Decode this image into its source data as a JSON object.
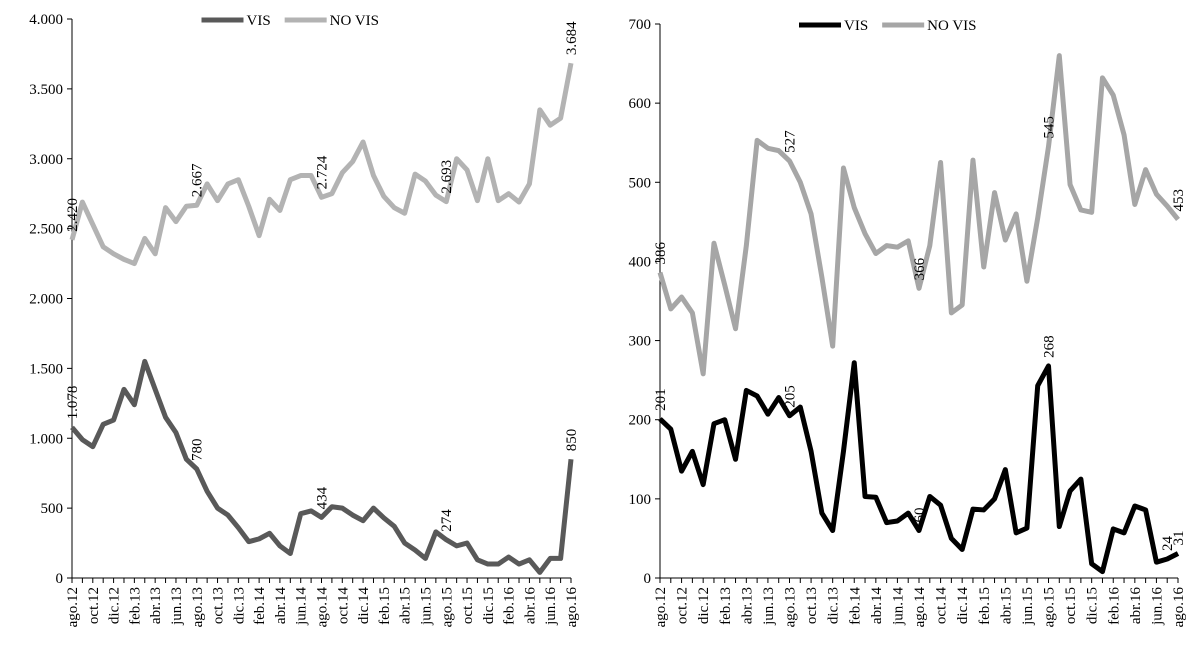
{
  "chart_data": [
    {
      "type": "line",
      "categories": [
        "ago.12",
        null,
        "oct.12",
        null,
        "dic.12",
        null,
        "feb.13",
        null,
        "abr.13",
        null,
        "jun.13",
        null,
        "ago.13",
        null,
        "oct.13",
        null,
        "dic.13",
        null,
        "feb.14",
        null,
        "abr.14",
        null,
        "jun.14",
        null,
        "ago.14",
        null,
        "oct.14",
        null,
        "dic.14",
        null,
        "feb.15",
        null,
        "abr.15",
        null,
        "jun.15",
        null,
        "ago.15",
        null,
        "oct.15",
        null,
        "dic.15",
        null,
        "feb.16",
        null,
        "abr.16",
        null,
        "jun.16",
        null,
        "ago.16"
      ],
      "ylim": [
        0,
        4000
      ],
      "yticks": [
        0,
        500,
        {
          "value": 1000,
          "label": "1.000"
        },
        {
          "value": 1500,
          "label": "1.500"
        },
        {
          "value": 2000,
          "label": "2.000"
        },
        {
          "value": 2500,
          "label": "2.500"
        },
        {
          "value": 3000,
          "label": "3.000"
        },
        {
          "value": 3500,
          "label": "3.500"
        },
        {
          "value": 4000,
          "label": "4.000"
        }
      ],
      "grid": false,
      "legend": "top",
      "series": [
        {
          "name": "VIS",
          "color": "#595959",
          "values": [
            1078,
            990,
            940,
            1100,
            1130,
            1350,
            1240,
            1550,
            1350,
            1150,
            1040,
            850,
            780,
            620,
            500,
            450,
            360,
            260,
            280,
            320,
            230,
            175,
            460,
            480,
            434,
            510,
            500,
            450,
            410,
            500,
            430,
            370,
            250,
            200,
            140,
            330,
            274,
            230,
            250,
            130,
            100,
            100,
            150,
            100,
            130,
            40,
            140,
            140,
            850
          ],
          "value_labels": [
            "1.078",
            null,
            null,
            null,
            null,
            null,
            null,
            null,
            null,
            null,
            null,
            null,
            "780",
            null,
            null,
            null,
            null,
            null,
            null,
            null,
            null,
            null,
            null,
            null,
            "434",
            null,
            null,
            null,
            null,
            null,
            null,
            null,
            null,
            null,
            null,
            null,
            "274",
            null,
            null,
            null,
            null,
            null,
            null,
            null,
            null,
            null,
            null,
            null,
            "850"
          ]
        },
        {
          "name": "NO VIS",
          "color": "#b3b3b3",
          "values": [
            2420,
            2690,
            2530,
            2370,
            2320,
            2280,
            2250,
            2430,
            2320,
            2650,
            2550,
            2660,
            2667,
            2820,
            2700,
            2820,
            2850,
            2660,
            2450,
            2710,
            2630,
            2850,
            2880,
            2880,
            2724,
            2750,
            2900,
            2980,
            3120,
            2880,
            2730,
            2650,
            2610,
            2890,
            2840,
            2740,
            2693,
            3000,
            2920,
            2700,
            3000,
            2700,
            2750,
            2690,
            2820,
            3350,
            3240,
            3290,
            3684
          ],
          "value_labels": [
            "2.420",
            null,
            null,
            null,
            null,
            null,
            null,
            null,
            null,
            null,
            null,
            null,
            "2.667",
            null,
            null,
            null,
            null,
            null,
            null,
            null,
            null,
            null,
            null,
            null,
            "2.724",
            null,
            null,
            null,
            null,
            null,
            null,
            null,
            null,
            null,
            null,
            null,
            "2.693",
            null,
            null,
            null,
            null,
            null,
            null,
            null,
            null,
            null,
            null,
            null,
            "3.684"
          ]
        }
      ]
    },
    {
      "type": "line",
      "categories": [
        "ago.12",
        null,
        "oct.12",
        null,
        "dic.12",
        null,
        "feb.13",
        null,
        "abr.13",
        null,
        "jun.13",
        null,
        "ago.13",
        null,
        "oct.13",
        null,
        "dic.13",
        null,
        "feb.14",
        null,
        "abr.14",
        null,
        "jun.14",
        null,
        "ago.14",
        null,
        "oct.14",
        null,
        "dic.14",
        null,
        "feb.15",
        null,
        "abr.15",
        null,
        "jun.15",
        null,
        "ago.15",
        null,
        "oct.15",
        null,
        "dic.15",
        null,
        "feb.16",
        null,
        "abr.16",
        null,
        "jun.16",
        null,
        "ago.16"
      ],
      "ylim": [
        0,
        700
      ],
      "yticks": [
        0,
        100,
        200,
        300,
        400,
        500,
        600,
        700
      ],
      "grid": false,
      "legend": "top",
      "series": [
        {
          "name": "VIS",
          "color": "#000000",
          "values": [
            201,
            188,
            135,
            160,
            118,
            195,
            200,
            150,
            237,
            230,
            207,
            228,
            205,
            216,
            160,
            82,
            60,
            160,
            272,
            103,
            102,
            70,
            72,
            82,
            60,
            103,
            92,
            50,
            36,
            87,
            86,
            100,
            137,
            57,
            63,
            243,
            268,
            65,
            110,
            125,
            18,
            8,
            62,
            57,
            91,
            86,
            20,
            24,
            31
          ],
          "value_labels": [
            "201",
            null,
            null,
            null,
            null,
            null,
            null,
            null,
            null,
            null,
            null,
            null,
            "205",
            null,
            null,
            null,
            null,
            null,
            null,
            null,
            null,
            null,
            null,
            null,
            "60",
            null,
            null,
            null,
            null,
            null,
            null,
            null,
            null,
            null,
            null,
            null,
            "268",
            null,
            null,
            null,
            null,
            null,
            null,
            null,
            null,
            null,
            null,
            "24",
            "31"
          ]
        },
        {
          "name": "NO VIS",
          "color": "#a6a6a6",
          "values": [
            386,
            340,
            355,
            335,
            258,
            423,
            370,
            315,
            420,
            553,
            543,
            540,
            527,
            500,
            460,
            380,
            293,
            518,
            468,
            435,
            410,
            420,
            418,
            426,
            366,
            420,
            525,
            335,
            345,
            528,
            393,
            487,
            427,
            460,
            375,
            455,
            545,
            660,
            497,
            465,
            462,
            632,
            610,
            560,
            472,
            516,
            485,
            470,
            453
          ],
          "value_labels": [
            "386",
            null,
            null,
            null,
            null,
            null,
            null,
            null,
            null,
            null,
            null,
            null,
            "527",
            null,
            null,
            null,
            null,
            null,
            null,
            null,
            null,
            null,
            null,
            null,
            "366",
            null,
            null,
            null,
            null,
            null,
            null,
            null,
            null,
            null,
            null,
            null,
            "545",
            null,
            null,
            null,
            null,
            null,
            null,
            null,
            null,
            null,
            null,
            null,
            "453"
          ]
        }
      ]
    }
  ]
}
